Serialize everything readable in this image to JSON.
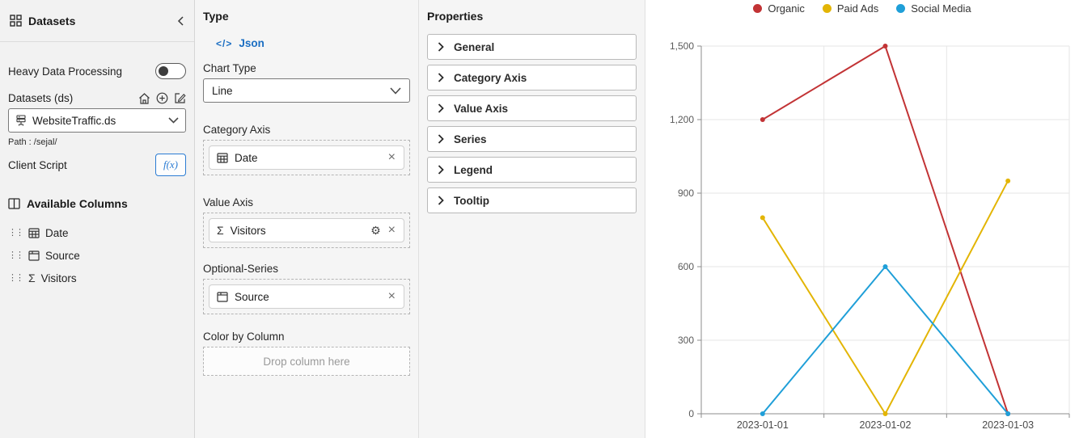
{
  "sidebar": {
    "title": "Datasets",
    "heavy_toggle_label": "Heavy Data Processing",
    "datasets_label": "Datasets (ds)",
    "dataset_select_value": "WebsiteTraffic.ds",
    "path": "Path : /sejal/",
    "client_script_label": "Client Script",
    "fx_button_label": "f(x)",
    "available_columns_title": "Available Columns",
    "columns": [
      "Date",
      "Source",
      "Visitors"
    ]
  },
  "type_panel": {
    "title": "Type",
    "json_link": "Json",
    "chart_type_label": "Chart Type",
    "chart_type_value": "Line",
    "category_axis_label": "Category Axis",
    "category_axis_value": "Date",
    "value_axis_label": "Value Axis",
    "value_axis_value": "Visitors",
    "optional_series_label": "Optional-Series",
    "optional_series_value": "Source",
    "color_by_column_label": "Color by Column",
    "color_drop_placeholder": "Drop column here"
  },
  "properties_panel": {
    "title": "Properties",
    "sections": [
      "General",
      "Category Axis",
      "Value Axis",
      "Series",
      "Legend",
      "Tooltip"
    ]
  },
  "icons": {
    "sigma": "Σ",
    "gear": "⚙",
    "close": "×",
    "code": "</>",
    "drag": "⋮⋮"
  },
  "chart_data": {
    "type": "line",
    "title": "",
    "xlabel": "",
    "ylabel": "",
    "categories": [
      "2023-01-01",
      "2023-01-02",
      "2023-01-03"
    ],
    "series": [
      {
        "name": "Organic",
        "color": "#c23335",
        "values": [
          1200,
          1500,
          0
        ]
      },
      {
        "name": "Paid Ads",
        "color": "#e3b505",
        "values": [
          800,
          0,
          950
        ]
      },
      {
        "name": "Social Media",
        "color": "#1f9fd8",
        "values": [
          0,
          600,
          0
        ]
      }
    ],
    "ylim": [
      0,
      1500
    ],
    "yticks": [
      0,
      300,
      600,
      900,
      1200,
      1500
    ],
    "ytick_labels": [
      "0",
      "300",
      "600",
      "900",
      "1,200",
      "1,500"
    ],
    "grid": true,
    "legend_position": "top",
    "axis_color": "#8d8d8d",
    "grid_color": "#e6e6e6"
  }
}
